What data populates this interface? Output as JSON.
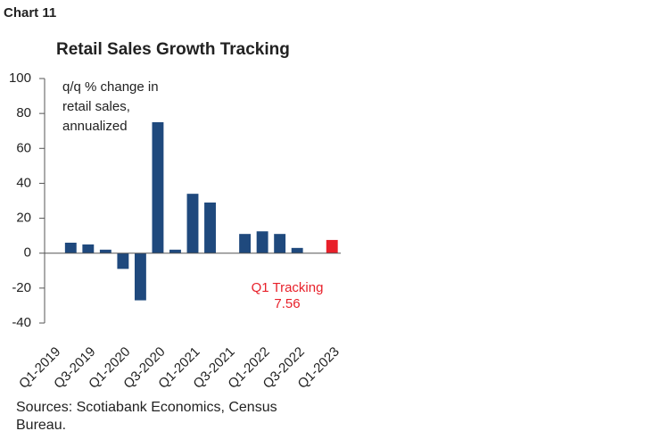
{
  "header": "Chart 11",
  "chart_data": {
    "type": "bar",
    "title": "Retail Sales Growth Tracking",
    "annotation_lines": [
      "q/q % change in",
      "retail sales,",
      "annualized"
    ],
    "highlight_label": "Q1 Tracking",
    "categories": [
      "Q1-2019",
      null,
      "Q3-2019",
      null,
      "Q1-2020",
      null,
      "Q3-2020",
      null,
      "Q1-2021",
      null,
      "Q3-2021",
      null,
      "Q1-2022",
      null,
      "Q3-2022",
      null,
      "Q1-2023"
    ],
    "values": [
      0,
      6,
      5,
      2,
      -9,
      -27,
      75,
      2,
      34,
      29,
      0,
      11,
      12.5,
      11,
      3,
      0,
      7.56
    ],
    "colors": [
      "#1f497d",
      "#1f497d",
      "#1f497d",
      "#1f497d",
      "#1f497d",
      "#1f497d",
      "#1f497d",
      "#1f497d",
      "#1f497d",
      "#1f497d",
      "#1f497d",
      "#1f497d",
      "#1f497d",
      "#1f497d",
      "#1f497d",
      "#1f497d",
      "#e8202a"
    ],
    "ylim": [
      -40,
      100
    ],
    "yticks": [
      -40,
      -20,
      0,
      20,
      40,
      60,
      80,
      100
    ],
    "source_lines": [
      "Sources: Scotiabank Economics, Census",
      "Bureau."
    ]
  }
}
